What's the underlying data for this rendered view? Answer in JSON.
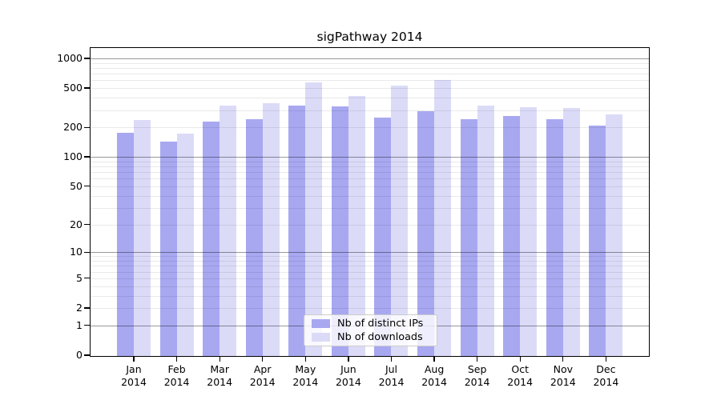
{
  "chart_data": {
    "type": "bar",
    "title": "sigPathway 2014",
    "categories": [
      "Jan",
      "Feb",
      "Mar",
      "Apr",
      "May",
      "Jun",
      "Jul",
      "Aug",
      "Sep",
      "Oct",
      "Nov",
      "Dec"
    ],
    "category_year": "2014",
    "series": [
      {
        "name": "Nb of distinct IPs",
        "color": "#a8a8f1",
        "values": [
          180,
          146,
          233,
          247,
          339,
          333,
          256,
          297,
          247,
          266,
          247,
          212
        ]
      },
      {
        "name": "Nb of downloads",
        "color": "#dbdbf8",
        "values": [
          242,
          176,
          339,
          358,
          582,
          424,
          540,
          616,
          339,
          326,
          320,
          276
        ]
      }
    ],
    "yticks": [
      0,
      1,
      2,
      5,
      10,
      20,
      50,
      100,
      200,
      500,
      1000
    ],
    "major_gridlines": [
      1,
      10,
      100,
      1000
    ],
    "minor_gridlines": [
      2,
      3,
      4,
      5,
      6,
      7,
      8,
      9,
      20,
      30,
      40,
      50,
      60,
      70,
      80,
      90,
      200,
      300,
      400,
      500,
      600,
      700,
      800,
      900
    ],
    "scale": "log1p",
    "ylim": [
      0,
      1273
    ],
    "grid": true,
    "legend_position": "lower-center",
    "xlabel": "",
    "ylabel": ""
  }
}
